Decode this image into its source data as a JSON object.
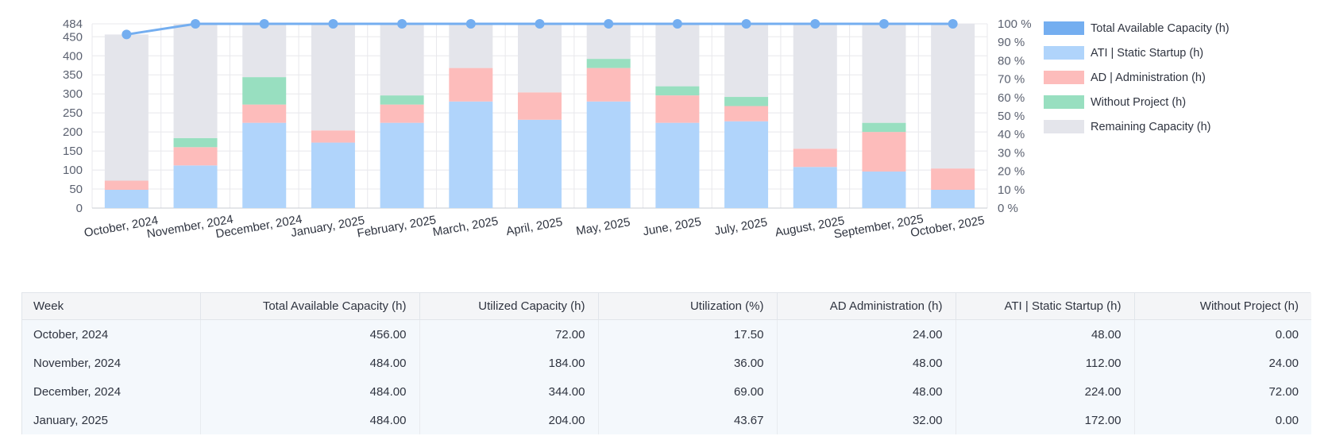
{
  "chart_data": {
    "type": "bar",
    "stacked": true,
    "categories": [
      "October, 2024",
      "November, 2024",
      "December, 2024",
      "January, 2025",
      "February, 2025",
      "March, 2025",
      "April, 2025",
      "May, 2025",
      "June, 2025",
      "July, 2025",
      "August, 2025",
      "September, 2025",
      "October, 2025"
    ],
    "series": [
      {
        "name": "ATI | Static Startup (h)",
        "color": "#b0d4fb",
        "values": [
          48,
          112,
          224,
          172,
          224,
          280,
          232,
          280,
          224,
          228,
          108,
          96,
          48
        ]
      },
      {
        "name": "AD | Administration (h)",
        "color": "#fdbcbb",
        "values": [
          24,
          48,
          48,
          32,
          48,
          88,
          72,
          88,
          72,
          40,
          48,
          104,
          56
        ]
      },
      {
        "name": "Without Project (h)",
        "color": "#98dfc0",
        "values": [
          0,
          24,
          72,
          0,
          24,
          0,
          0,
          24,
          24,
          24,
          0,
          24,
          0
        ]
      },
      {
        "name": "Remaining Capacity (h)",
        "color": "#e4e5eb",
        "values": [
          384,
          300,
          140,
          280,
          188,
          116,
          180,
          92,
          164,
          192,
          328,
          260,
          380
        ]
      }
    ],
    "line_series": {
      "name": "Total Available Capacity (h)",
      "color": "#74aef0",
      "values": [
        456,
        484,
        484,
        484,
        484,
        484,
        484,
        484,
        484,
        484,
        484,
        484,
        484
      ]
    },
    "y_left": {
      "min": 0,
      "max": 484,
      "ticks": [
        "0",
        "50",
        "100",
        "150",
        "200",
        "250",
        "300",
        "350",
        "400",
        "450",
        "484"
      ]
    },
    "y_right": {
      "min": 0,
      "max": 100,
      "ticks": [
        "0 %",
        "10 %",
        "20 %",
        "30 %",
        "40 %",
        "50 %",
        "60 %",
        "70 %",
        "80 %",
        "90 %",
        "100 %"
      ]
    },
    "legend": {
      "position": "right",
      "entries": [
        "Total Available Capacity (h)",
        "ATI | Static Startup (h)",
        "AD | Administration (h)",
        "Without Project (h)",
        "Remaining Capacity (h)"
      ]
    },
    "grid": true
  },
  "table": {
    "columns": [
      "Week",
      "Total Available Capacity (h)",
      "Utilized Capacity (h)",
      "Utilization (%)",
      "AD Administration (h)",
      "ATI | Static Startup (h)",
      "Without Project (h)"
    ],
    "rows": [
      [
        "October, 2024",
        "456.00",
        "72.00",
        "17.50",
        "24.00",
        "48.00",
        "0.00"
      ],
      [
        "November, 2024",
        "484.00",
        "184.00",
        "36.00",
        "48.00",
        "112.00",
        "24.00"
      ],
      [
        "December, 2024",
        "484.00",
        "344.00",
        "69.00",
        "48.00",
        "224.00",
        "72.00"
      ],
      [
        "January, 2025",
        "484.00",
        "204.00",
        "43.67",
        "32.00",
        "172.00",
        "0.00"
      ]
    ]
  }
}
